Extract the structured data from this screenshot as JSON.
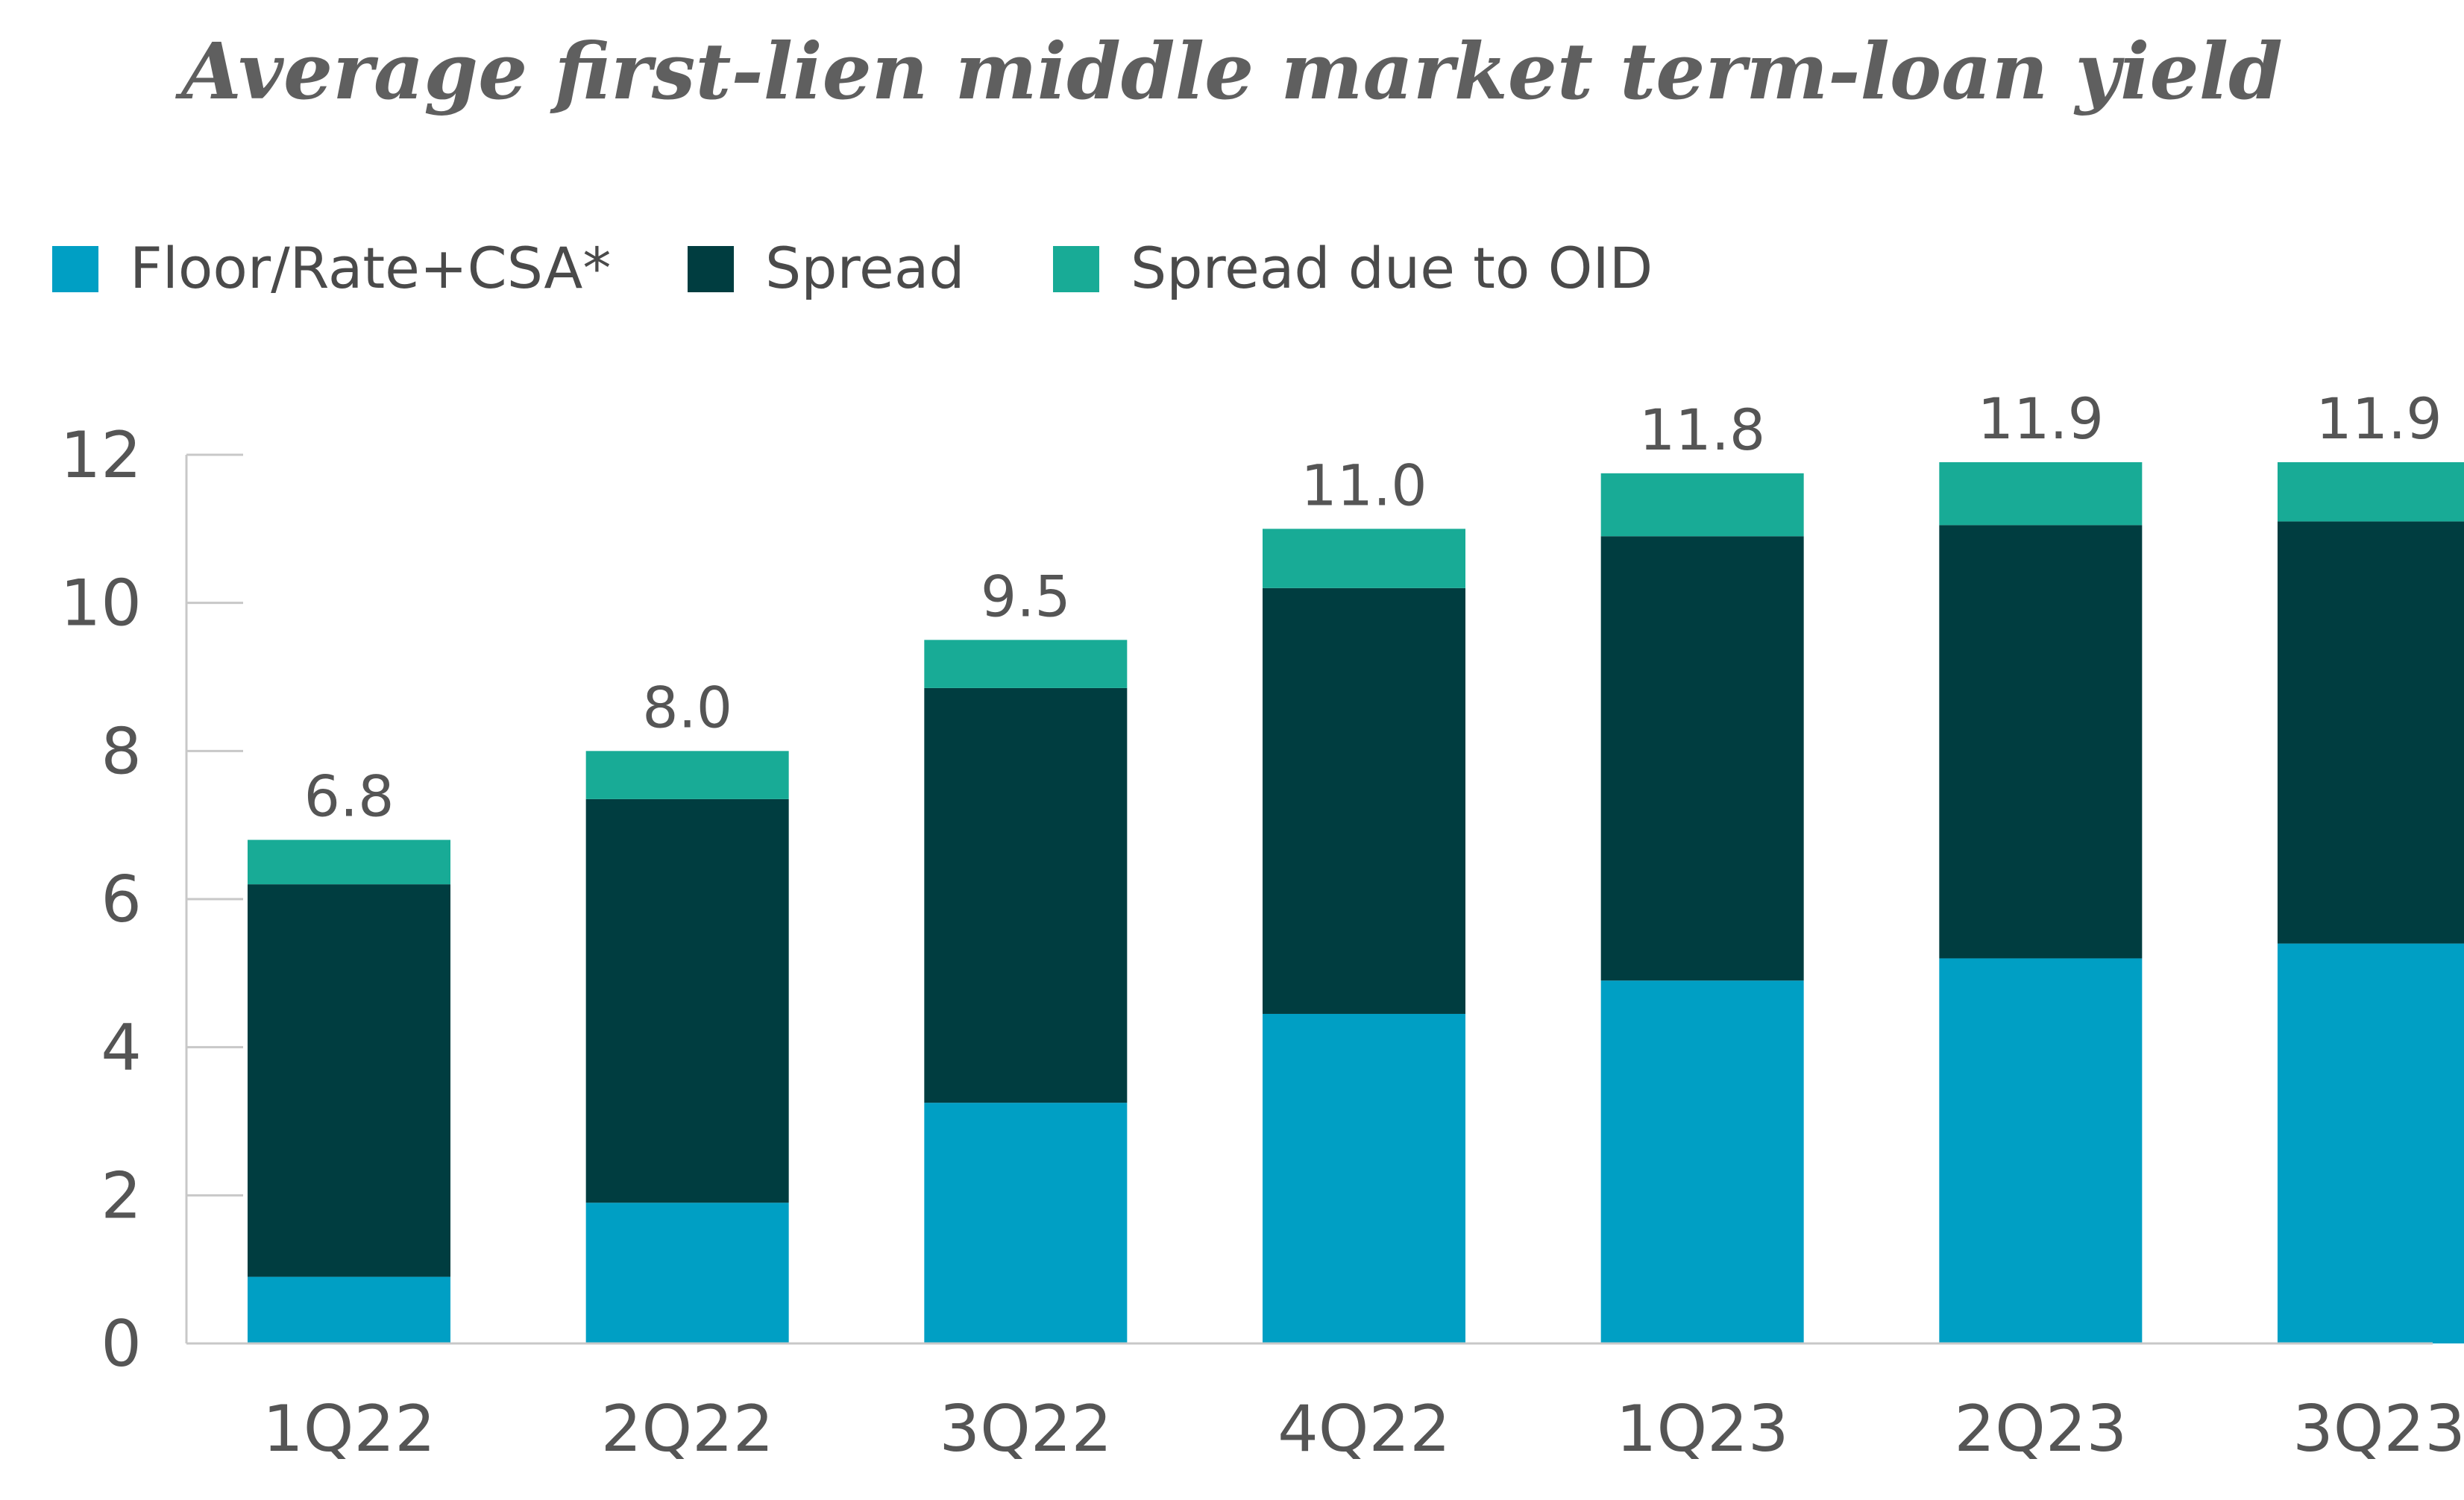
{
  "chart_data": {
    "type": "bar",
    "stacked": true,
    "title": "Average first-lien middle market term-loan yield",
    "categories": [
      "1Q22",
      "2Q22",
      "3Q22",
      "4Q22",
      "1Q23",
      "2Q23",
      "3Q23"
    ],
    "series": [
      {
        "name": "Floor/Rate+CSA*",
        "color": "#009fc4",
        "values": [
          0.9,
          1.9,
          3.25,
          4.45,
          4.9,
          5.2,
          5.4
        ]
      },
      {
        "name": "Spread",
        "color": "#003d40",
        "values": [
          5.3,
          5.45,
          5.6,
          5.75,
          6.0,
          5.85,
          5.7
        ]
      },
      {
        "name": "Spread due to OID",
        "color": "#18ab96",
        "values": [
          0.6,
          0.65,
          0.65,
          0.8,
          0.85,
          0.85,
          0.8
        ]
      }
    ],
    "totals": [
      "6.8",
      "8.0",
      "9.5",
      "11.0",
      "11.8",
      "11.9",
      "11.9"
    ],
    "ylim": [
      0,
      12
    ],
    "yticks": [
      "0",
      "2",
      "4",
      "6",
      "8",
      "10",
      "12"
    ],
    "xlabel": "",
    "ylabel": "",
    "legend_position": "top-left",
    "grid": false
  }
}
